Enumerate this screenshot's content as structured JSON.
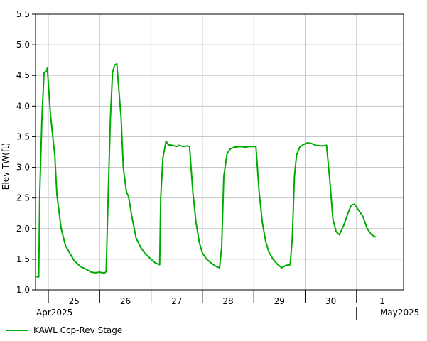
{
  "chart_data": {
    "type": "line",
    "title": "",
    "ylabel": "Elev TW(ft)",
    "xlabel": "",
    "ylim": [
      1.0,
      5.5
    ],
    "y_ticks": [
      "1.0",
      "1.5",
      "2.0",
      "2.5",
      "3.0",
      "3.5",
      "4.0",
      "4.5",
      "5.0",
      "5.5"
    ],
    "x_range": [
      "2025-04-24 18:00",
      "2025-05-01 22:00"
    ],
    "x_day_ticks": [
      {
        "label": "25",
        "day": "2025-04-25"
      },
      {
        "label": "26",
        "day": "2025-04-26"
      },
      {
        "label": "27",
        "day": "2025-04-27"
      },
      {
        "label": "28",
        "day": "2025-04-28"
      },
      {
        "label": "29",
        "day": "2025-04-29"
      },
      {
        "label": "30",
        "day": "2025-04-30"
      },
      {
        "label": "1",
        "day": "2025-05-01"
      }
    ],
    "month_labels": [
      {
        "label": "Apr2025",
        "date": "2025-04-25"
      },
      {
        "label": "May2025",
        "date": "2025-05-01"
      }
    ],
    "grid": true,
    "legend_position": "bottom-left",
    "series": [
      {
        "name": "KAWL Ccp-Rev Stage",
        "color": "#00aa00",
        "points": [
          [
            "2025-04-24 18:00",
            1.22
          ],
          [
            "2025-04-24 19:30",
            1.21
          ],
          [
            "2025-04-24 20:00",
            2.6
          ],
          [
            "2025-04-24 21:00",
            3.8
          ],
          [
            "2025-04-24 22:00",
            4.55
          ],
          [
            "2025-04-24 23:00",
            4.56
          ],
          [
            "2025-04-24 23:30",
            4.62
          ],
          [
            "2025-04-25 01:00",
            3.85
          ],
          [
            "2025-04-25 03:00",
            3.2
          ],
          [
            "2025-04-25 04:00",
            2.55
          ],
          [
            "2025-04-25 06:00",
            2.0
          ],
          [
            "2025-04-25 08:00",
            1.72
          ],
          [
            "2025-04-25 10:00",
            1.6
          ],
          [
            "2025-04-25 12:00",
            1.48
          ],
          [
            "2025-04-25 15:00",
            1.38
          ],
          [
            "2025-04-25 18:00",
            1.33
          ],
          [
            "2025-04-25 20:00",
            1.29
          ],
          [
            "2025-04-25 22:00",
            1.28
          ],
          [
            "2025-04-26 00:00",
            1.29
          ],
          [
            "2025-04-26 01:00",
            1.28
          ],
          [
            "2025-04-26 02:30",
            1.28
          ],
          [
            "2025-04-26 03:00",
            1.3
          ],
          [
            "2025-04-26 04:00",
            2.6
          ],
          [
            "2025-04-26 05:00",
            3.8
          ],
          [
            "2025-04-26 06:00",
            4.55
          ],
          [
            "2025-04-26 07:00",
            4.67
          ],
          [
            "2025-04-26 08:00",
            4.69
          ],
          [
            "2025-04-26 10:00",
            3.8
          ],
          [
            "2025-04-26 11:00",
            3.0
          ],
          [
            "2025-04-26 12:30",
            2.6
          ],
          [
            "2025-04-26 13:30",
            2.52
          ],
          [
            "2025-04-26 15:00",
            2.2
          ],
          [
            "2025-04-26 17:00",
            1.85
          ],
          [
            "2025-04-26 19:00",
            1.7
          ],
          [
            "2025-04-26 21:00",
            1.6
          ],
          [
            "2025-04-27 00:00",
            1.5
          ],
          [
            "2025-04-27 02:00",
            1.44
          ],
          [
            "2025-04-27 04:00",
            1.41
          ],
          [
            "2025-04-27 04:30",
            2.5
          ],
          [
            "2025-04-27 05:30",
            3.15
          ],
          [
            "2025-04-27 07:00",
            3.43
          ],
          [
            "2025-04-27 08:00",
            3.37
          ],
          [
            "2025-04-27 10:00",
            3.36
          ],
          [
            "2025-04-27 12:00",
            3.34
          ],
          [
            "2025-04-27 13:00",
            3.36
          ],
          [
            "2025-04-27 15:00",
            3.34
          ],
          [
            "2025-04-27 17:00",
            3.35
          ],
          [
            "2025-04-27 18:00",
            3.34
          ],
          [
            "2025-04-27 19:30",
            2.6
          ],
          [
            "2025-04-27 21:00",
            2.1
          ],
          [
            "2025-04-27 22:30",
            1.78
          ],
          [
            "2025-04-28 00:00",
            1.6
          ],
          [
            "2025-04-28 02:00",
            1.5
          ],
          [
            "2025-04-28 04:00",
            1.44
          ],
          [
            "2025-04-28 06:00",
            1.39
          ],
          [
            "2025-04-28 08:00",
            1.36
          ],
          [
            "2025-04-28 09:00",
            1.7
          ],
          [
            "2025-04-28 10:00",
            2.85
          ],
          [
            "2025-04-28 11:30",
            3.22
          ],
          [
            "2025-04-28 13:00",
            3.3
          ],
          [
            "2025-04-28 15:00",
            3.33
          ],
          [
            "2025-04-28 18:00",
            3.34
          ],
          [
            "2025-04-28 20:00",
            3.33
          ],
          [
            "2025-04-28 22:00",
            3.34
          ],
          [
            "2025-04-29 01:00",
            3.34
          ],
          [
            "2025-04-29 02:30",
            2.6
          ],
          [
            "2025-04-29 04:00",
            2.1
          ],
          [
            "2025-04-29 05:30",
            1.8
          ],
          [
            "2025-04-29 07:00",
            1.62
          ],
          [
            "2025-04-29 09:00",
            1.5
          ],
          [
            "2025-04-29 11:00",
            1.42
          ],
          [
            "2025-04-29 13:00",
            1.36
          ],
          [
            "2025-04-29 15:00",
            1.4
          ],
          [
            "2025-04-29 17:00",
            1.41
          ],
          [
            "2025-04-29 18:00",
            1.85
          ],
          [
            "2025-04-29 19:00",
            2.85
          ],
          [
            "2025-04-29 20:00",
            3.2
          ],
          [
            "2025-04-29 21:30",
            3.33
          ],
          [
            "2025-04-29 23:00",
            3.37
          ],
          [
            "2025-04-30 01:00",
            3.4
          ],
          [
            "2025-04-30 03:00",
            3.39
          ],
          [
            "2025-04-30 05:00",
            3.36
          ],
          [
            "2025-04-30 08:00",
            3.35
          ],
          [
            "2025-04-30 10:00",
            3.36
          ],
          [
            "2025-04-30 11:30",
            2.8
          ],
          [
            "2025-04-30 13:00",
            2.15
          ],
          [
            "2025-04-30 14:30",
            1.95
          ],
          [
            "2025-04-30 16:00",
            1.9
          ],
          [
            "2025-04-30 18:00",
            2.05
          ],
          [
            "2025-04-30 20:00",
            2.25
          ],
          [
            "2025-04-30 21:30",
            2.38
          ],
          [
            "2025-04-30 23:00",
            2.4
          ],
          [
            "2025-05-01 01:00",
            2.3
          ],
          [
            "2025-05-01 03:00",
            2.2
          ],
          [
            "2025-05-01 05:00",
            2.0
          ],
          [
            "2025-05-01 07:00",
            1.9
          ],
          [
            "2025-05-01 09:00",
            1.86
          ]
        ]
      }
    ]
  }
}
